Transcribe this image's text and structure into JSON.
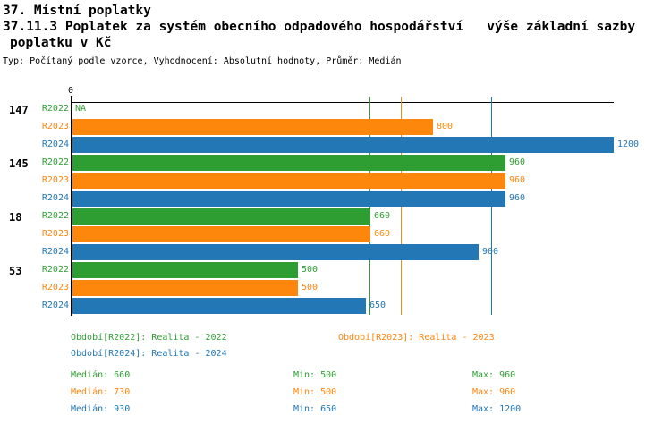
{
  "header": {
    "title": "37. Místní poplatky",
    "subtitle_line1": "37.11.3 Poplatek za systém obecního odpadového hospodářství   výše základní sazby",
    "subtitle_line2": "poplatku v Kč",
    "meta": "Typ: Počítaný podle vzorce, Vyhodnocení: Absolutní hodnoty, Průměr: Medián"
  },
  "colors": {
    "r2022_green": "#2f9e32",
    "r2023_orange": "#fd860d",
    "r2024_blue": "#2277b4",
    "axis_black": "#000000",
    "background": "#ffffff"
  },
  "chart_data": {
    "type": "bar",
    "orientation": "horizontal",
    "xlim": [
      0,
      1200
    ],
    "x_axis_tick_label": "0",
    "grid": "median-lines-per-series",
    "na_label": "NA",
    "categories": [
      "147",
      "145",
      "18",
      "53"
    ],
    "series": [
      {
        "name": "R2022",
        "legend": "Realita - 2022",
        "color": "#2f9e32",
        "values": [
          null,
          960,
          660,
          500
        ],
        "median": 660,
        "min": 500,
        "max": 960
      },
      {
        "name": "R2023",
        "legend": "Realita - 2023",
        "color": "#fd860d",
        "values": [
          800,
          960,
          660,
          500
        ],
        "median": 730,
        "min": 500,
        "max": 960
      },
      {
        "name": "R2024",
        "legend": "Realita - 2024",
        "color": "#2277b4",
        "values": [
          1200,
          960,
          900,
          650
        ],
        "median": 930,
        "min": 650,
        "max": 1200
      }
    ]
  },
  "legend": {
    "items": [
      {
        "label": "Období[R2022]: Realita - 2022",
        "color": "#2f9e32"
      },
      {
        "label": "Období[R2023]: Realita - 2023",
        "color": "#fd860d"
      },
      {
        "label": "Období[R2024]: Realita - 2024",
        "color": "#2277b4"
      }
    ]
  },
  "stats": {
    "rows": [
      {
        "median": "Medián: 660",
        "min": "Min: 500",
        "max": "Max: 960",
        "color": "#2f9e32"
      },
      {
        "median": "Medián: 730",
        "min": "Min: 500",
        "max": "Max: 960",
        "color": "#fd860d"
      },
      {
        "median": "Medián: 930",
        "min": "Min: 650",
        "max": "Max: 1200",
        "color": "#2277b4"
      }
    ]
  }
}
